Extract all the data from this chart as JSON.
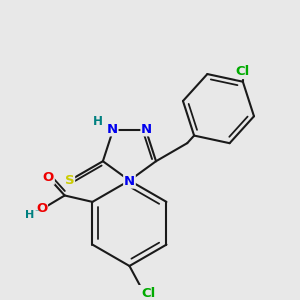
{
  "bg_color": "#e8e8e8",
  "bond_color": "#1a1a1a",
  "bond_width": 1.5,
  "atom_colors": {
    "N": "#0000ee",
    "O": "#ee0000",
    "S": "#cccc00",
    "Cl": "#00aa00",
    "H": "#008080",
    "C": "#1a1a1a"
  },
  "font_size": 9.5
}
